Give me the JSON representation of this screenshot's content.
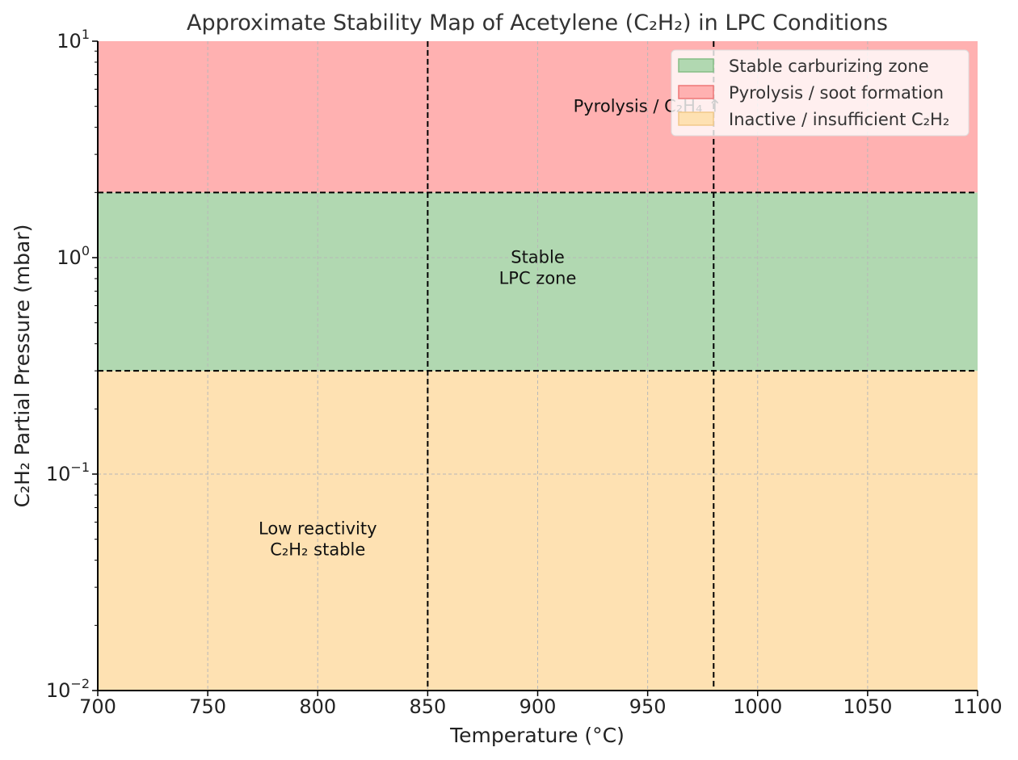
{
  "chart_data": {
    "type": "area",
    "title": "Approximate Stability Map of Acetylene (C₂H₂) in LPC Conditions",
    "xlabel": "Temperature (°C)",
    "ylabel": "C₂H₂ Partial Pressure (mbar)",
    "xlim": [
      700,
      1100
    ],
    "ylim": [
      0.01,
      10
    ],
    "yscale": "log",
    "grid": true,
    "legend_position": "top-right",
    "x_ticks": [
      "700",
      "750",
      "800",
      "850",
      "900",
      "950",
      "1000",
      "1050",
      "1100"
    ],
    "x_tick_values": [
      700,
      750,
      800,
      850,
      900,
      950,
      1000,
      1050,
      1100
    ],
    "y_ticks": [
      {
        "value": 0.01,
        "base": "10",
        "exp": "−2"
      },
      {
        "value": 0.1,
        "base": "10",
        "exp": "−1"
      },
      {
        "value": 1,
        "base": "10",
        "exp": "0"
      },
      {
        "value": 10,
        "base": "10",
        "exp": "1"
      }
    ],
    "regions": [
      {
        "name": "Inactive / insufficient C₂H₂",
        "y_from": 0.01,
        "y_to": 0.3,
        "color": "#fee1b2"
      },
      {
        "name": "Stable carburizing zone",
        "y_from": 0.3,
        "y_to": 2,
        "color": "#b1d8b1"
      },
      {
        "name": "Pyrolysis / soot formation",
        "y_from": 2,
        "y_to": 10,
        "color": "#ffb1b1"
      }
    ],
    "boundary_lines": {
      "vertical_x": [
        850,
        980
      ],
      "horizontal_y": [
        0.3,
        2
      ]
    },
    "annotations": [
      {
        "lines": [
          "Pyrolysis / C₂H₄ ↑"
        ],
        "x": 950,
        "y": 5
      },
      {
        "lines": [
          "Stable",
          "LPC zone"
        ],
        "x": 900,
        "y": 0.9
      },
      {
        "lines": [
          "Low reactivity",
          "C₂H₂ stable"
        ],
        "x": 800,
        "y": 0.05
      }
    ],
    "legend": [
      {
        "label": "Stable carburizing zone",
        "fill": "#b1d8b1",
        "stroke": "#85bd85"
      },
      {
        "label": "Pyrolysis / soot formation",
        "fill": "#ffb1b1",
        "stroke": "#ee7777"
      },
      {
        "label": "Inactive / insufficient C₂H₂",
        "fill": "#fee1b2",
        "stroke": "#f2c98a"
      }
    ]
  }
}
